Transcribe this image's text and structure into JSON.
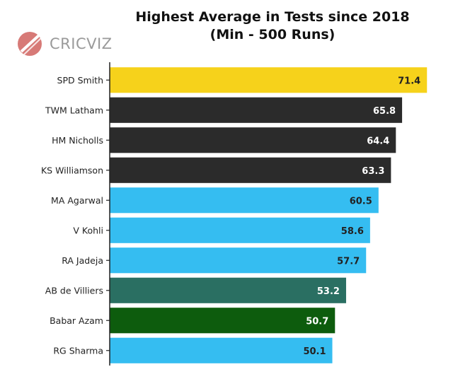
{
  "chart_data": {
    "type": "bar",
    "orientation": "horizontal",
    "title": "Highest Average in Tests since 2018",
    "subtitle": "(Min - 500 Runs)",
    "categories": [
      "SPD Smith",
      "TWM Latham",
      "HM Nicholls",
      "KS Williamson",
      "MA Agarwal",
      "V Kohli",
      "RA Jadeja",
      "AB de Villiers",
      "Babar Azam",
      "RG Sharma"
    ],
    "values": [
      71.4,
      65.8,
      64.4,
      63.3,
      60.5,
      58.6,
      57.7,
      53.2,
      50.7,
      50.1
    ],
    "value_labels": [
      "71.4",
      "65.8",
      "64.4",
      "63.3",
      "60.5",
      "58.6",
      "57.7",
      "53.2",
      "50.7",
      "50.1"
    ],
    "bar_colors": [
      "#f6d21b",
      "#2b2b2b",
      "#2b2b2b",
      "#2b2b2b",
      "#35bdf1",
      "#35bdf1",
      "#35bdf1",
      "#2a6f62",
      "#0d5c0d",
      "#35bdf1"
    ],
    "label_colors": [
      "#222222",
      "#ffffff",
      "#ffffff",
      "#ffffff",
      "#222222",
      "#222222",
      "#222222",
      "#ffffff",
      "#ffffff",
      "#222222"
    ],
    "xlim": [
      0,
      72
    ],
    "grid": false,
    "legend": "none"
  },
  "logo": {
    "text": "CRICVIZ",
    "accent": "#d9534f"
  }
}
